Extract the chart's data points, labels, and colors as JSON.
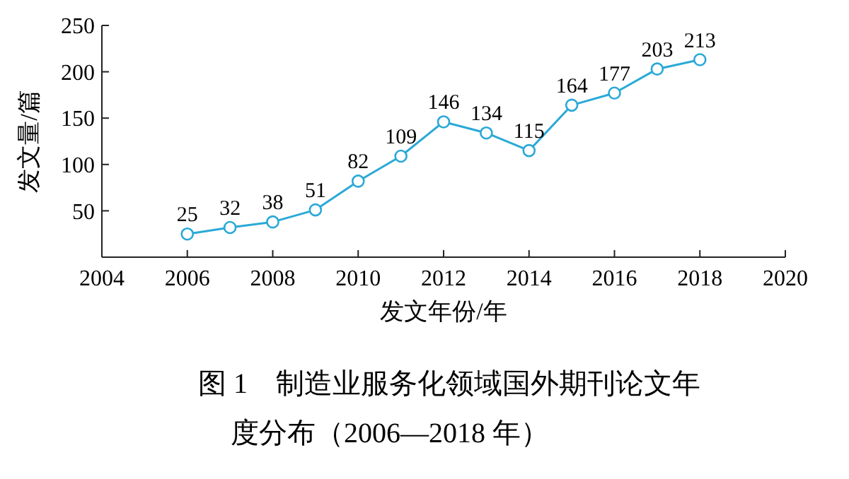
{
  "chart_data": {
    "type": "line",
    "title": "图 1　制造业服务化领域国外期刊论文年度分布（2006—2018 年）",
    "xlabel": "发文年份/年",
    "ylabel": "发文量/篇",
    "x": [
      2006,
      2007,
      2008,
      2009,
      2010,
      2011,
      2012,
      2013,
      2014,
      2015,
      2016,
      2017,
      2018
    ],
    "series": [
      {
        "color": "#2aa9d6",
        "values": [
          25,
          32,
          38,
          51,
          82,
          109,
          146,
          134,
          115,
          164,
          177,
          203,
          213
        ]
      }
    ],
    "xlim": [
      2004,
      2020
    ],
    "xticks": [
      2004,
      2006,
      2008,
      2010,
      2012,
      2014,
      2016,
      2018,
      2020
    ],
    "ylim": [
      0,
      250
    ],
    "yticks": [
      50,
      100,
      150,
      200,
      250
    ],
    "marker": "circle",
    "line_style": "solid",
    "data_labels": true,
    "grid": false
  }
}
